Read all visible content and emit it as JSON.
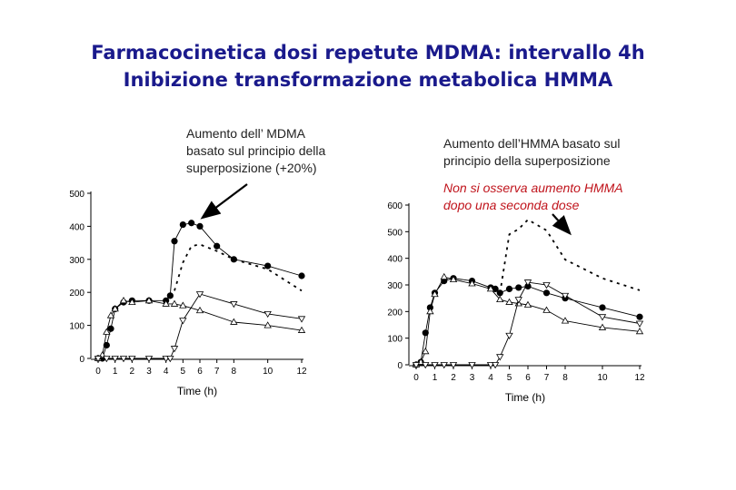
{
  "slide": {
    "title_line1": "Farmacocinetica dosi repetute MDMA: intervallo 4h",
    "title_line2": "Inibizione transformazione metabolica HMMA",
    "note_mdma": [
      "Aumento dell’ MDMA",
      "basato sul principio della",
      "superposizione (+20%)"
    ],
    "note_hmma": [
      "Aumento dell’HMMA basato sul",
      "principio della superposizione"
    ],
    "note_red": [
      "Non si osserva aumento HMMA",
      "dopo una seconda dose"
    ]
  },
  "chart_data": [
    {
      "type": "line",
      "xlabel": "Time (h)",
      "ylabel": "",
      "xlim": [
        0,
        12
      ],
      "ylim": [
        0,
        500
      ],
      "xticks": [
        0,
        1,
        2,
        3,
        4,
        5,
        6,
        7,
        8,
        10,
        12
      ],
      "yticks": [
        0,
        100,
        200,
        300,
        400,
        500
      ],
      "series": [
        {
          "marker": "filled-circle",
          "style": "solid",
          "x": [
            0,
            0.25,
            0.5,
            0.75,
            1,
            1.5,
            2,
            3,
            4,
            4.25,
            4.5,
            5,
            5.5,
            6,
            7,
            8,
            10,
            12
          ],
          "y": [
            0,
            0,
            40,
            90,
            150,
            170,
            175,
            175,
            175,
            190,
            355,
            405,
            410,
            400,
            340,
            300,
            280,
            250
          ]
        },
        {
          "marker": "dashed-line",
          "style": "dashed",
          "x": [
            4.5,
            5,
            5.5,
            6,
            7,
            8,
            10,
            12
          ],
          "y": [
            205,
            290,
            340,
            345,
            325,
            300,
            270,
            205
          ]
        },
        {
          "marker": "open-triangle-up",
          "style": "solid",
          "x": [
            0,
            0.25,
            0.5,
            0.75,
            1,
            1.5,
            2,
            3,
            4,
            4.5,
            5,
            6,
            8,
            10,
            12
          ],
          "y": [
            0,
            10,
            80,
            130,
            150,
            175,
            170,
            175,
            165,
            165,
            160,
            145,
            110,
            100,
            85
          ]
        },
        {
          "marker": "open-triangle-down",
          "style": "solid",
          "x": [
            0,
            0.5,
            1,
            1.5,
            2,
            3,
            4,
            4.25,
            4.5,
            5,
            6,
            8,
            10,
            12
          ],
          "y": [
            0,
            0,
            0,
            0,
            0,
            0,
            0,
            0,
            30,
            115,
            195,
            165,
            135,
            120
          ]
        }
      ]
    },
    {
      "type": "line",
      "xlabel": "Time (h)",
      "ylabel": "",
      "xlim": [
        0,
        12
      ],
      "ylim": [
        0,
        600
      ],
      "xticks": [
        0,
        1,
        2,
        3,
        4,
        5,
        6,
        7,
        8,
        10,
        12
      ],
      "yticks": [
        0,
        100,
        200,
        300,
        400,
        500,
        600
      ],
      "series": [
        {
          "marker": "filled-circle",
          "style": "solid",
          "x": [
            0,
            0.25,
            0.5,
            0.75,
            1,
            1.5,
            2,
            3,
            4,
            4.25,
            4.5,
            5,
            5.5,
            6,
            7,
            8,
            10,
            12
          ],
          "y": [
            0,
            10,
            120,
            215,
            270,
            315,
            325,
            315,
            290,
            285,
            270,
            285,
            290,
            295,
            270,
            250,
            215,
            180
          ]
        },
        {
          "marker": "dashed-line",
          "style": "dashed",
          "x": [
            4.5,
            5,
            5.5,
            6,
            7,
            8,
            10,
            12
          ],
          "y": [
            270,
            490,
            510,
            545,
            505,
            395,
            325,
            280
          ]
        },
        {
          "marker": "open-triangle-up",
          "style": "solid",
          "x": [
            0,
            0.25,
            0.5,
            0.75,
            1,
            1.5,
            2,
            3,
            4,
            4.5,
            5,
            5.5,
            6,
            7,
            8,
            10,
            12
          ],
          "y": [
            0,
            10,
            50,
            200,
            265,
            330,
            320,
            305,
            285,
            245,
            235,
            230,
            225,
            205,
            165,
            140,
            125
          ]
        },
        {
          "marker": "open-triangle-down",
          "style": "solid",
          "x": [
            0,
            0.5,
            1,
            1.5,
            2,
            3,
            4,
            4.25,
            4.5,
            5,
            5.5,
            6,
            7,
            8,
            10,
            12
          ],
          "y": [
            0,
            0,
            0,
            0,
            0,
            0,
            0,
            0,
            30,
            110,
            245,
            310,
            300,
            260,
            180,
            155
          ]
        }
      ]
    }
  ]
}
